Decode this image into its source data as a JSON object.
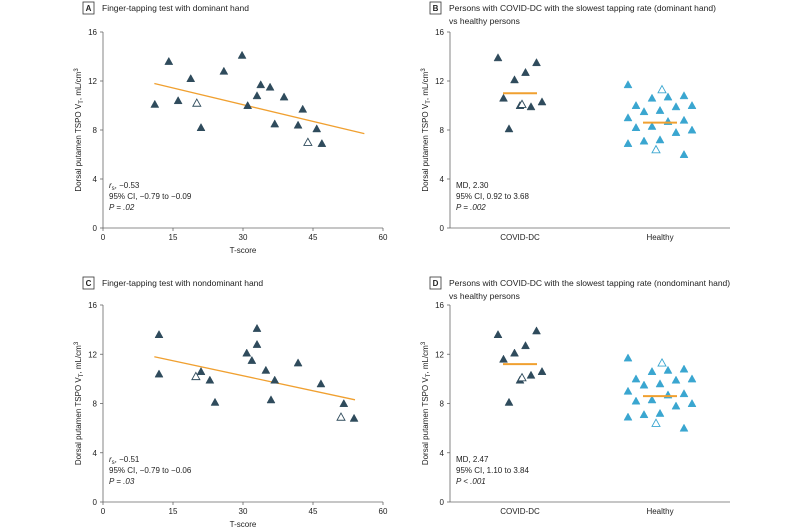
{
  "chart_data": [
    {
      "type": "scatter",
      "panel_label": "A",
      "title": [
        "Finger-tapping test with dominant hand"
      ],
      "x_label": "T-score",
      "y_label": [
        "Dorsal putamen TSPO V",
        "T",
        ", mL/cm",
        "3"
      ],
      "xlim": [
        0,
        60
      ],
      "xticks": [
        0,
        15,
        30,
        45,
        60
      ],
      "ylim": [
        0,
        16
      ],
      "yticks": [
        0,
        4,
        8,
        12,
        16
      ],
      "series": [
        {
          "color": "#2f4b5c",
          "filled": true,
          "x": [
            11.1,
            14.1,
            16.1,
            18.8,
            21,
            25.9,
            29.8,
            31,
            33,
            33.8,
            35.8,
            36.8,
            38.8,
            41.8,
            42.8,
            45.8,
            46.9
          ],
          "values": [
            10.1,
            13.6,
            10.4,
            12.2,
            8.2,
            12.8,
            14.1,
            10.0,
            10.8,
            11.7,
            11.5,
            8.5,
            10.7,
            8.4,
            9.7,
            8.1,
            6.9
          ]
        },
        {
          "color": "#2f4b5c",
          "filled": false,
          "x": [
            20.1,
            43.9
          ],
          "values": [
            10.2,
            7.0
          ]
        }
      ],
      "trend": {
        "color": "#f0a030",
        "x": [
          11,
          56
        ],
        "values": [
          11.8,
          7.7
        ]
      },
      "annotations": [
        [
          "r",
          "s",
          ", −0.53"
        ],
        [
          "95% CI, −0.79 to −0.09"
        ],
        [
          "P = .02"
        ]
      ]
    },
    {
      "type": "strip",
      "panel_label": "B",
      "title": [
        "Persons with COVID-DC with the slowest tapping rate (dominant hand)",
        "vs healthy persons"
      ],
      "y_label": [
        "Dorsal putamen TSPO V",
        "T",
        ", mL/cm",
        "3"
      ],
      "ylim": [
        0,
        16
      ],
      "yticks": [
        0,
        4,
        8,
        12,
        16
      ],
      "categories": [
        "COVID-DC",
        "Healthy"
      ],
      "groups": [
        {
          "color": "#2f4b5c",
          "values": [
            13.9,
            13.5,
            12.7,
            12.1,
            10.6,
            10.3,
            9.9,
            10.0,
            8.1
          ],
          "open_values": [
            10.1
          ],
          "center": 11.0
        },
        {
          "color": "#3aa6d0",
          "values": [
            11.7,
            10.8,
            10.7,
            10.6,
            10.0,
            10.0,
            9.9,
            9.6,
            9.5,
            9.0,
            8.8,
            8.7,
            8.3,
            8.2,
            8.0,
            7.8,
            7.2,
            7.1,
            6.9,
            6.0
          ],
          "open_values": [
            11.3,
            6.4
          ],
          "center": 8.6
        }
      ],
      "center_color": "#f0a030",
      "annotations": [
        [
          "MD, 2.30"
        ],
        [
          "95% CI, 0.92 to 3.68"
        ],
        [
          "P = .002"
        ]
      ]
    },
    {
      "type": "scatter",
      "panel_label": "C",
      "title": [
        "Finger-tapping test with nondominant hand"
      ],
      "x_label": "T-score",
      "y_label": [
        "Dorsal putamen TSPO V",
        "T",
        ", mL/cm",
        "3"
      ],
      "xlim": [
        0,
        60
      ],
      "xticks": [
        0,
        15,
        30,
        45,
        60
      ],
      "ylim": [
        0,
        16
      ],
      "yticks": [
        0,
        4,
        8,
        12,
        16
      ],
      "series": [
        {
          "color": "#2f4b5c",
          "filled": true,
          "x": [
            12,
            12,
            21,
            22.9,
            24,
            30.8,
            31.9,
            33,
            33,
            34.9,
            36,
            36.8,
            41.8,
            46.7,
            51.6,
            53.8
          ],
          "values": [
            13.6,
            10.4,
            10.6,
            9.9,
            8.1,
            12.1,
            11.5,
            14.1,
            12.8,
            10.7,
            8.3,
            9.9,
            11.3,
            9.6,
            8.0,
            6.8
          ]
        },
        {
          "color": "#2f4b5c",
          "filled": false,
          "x": [
            19.9,
            51
          ],
          "values": [
            10.2,
            6.9
          ]
        }
      ],
      "trend": {
        "color": "#f0a030",
        "x": [
          11,
          54
        ],
        "values": [
          11.8,
          8.3
        ]
      },
      "annotations": [
        [
          "r",
          "s",
          ", −0.51"
        ],
        [
          "95% CI, −0.79 to −0.06"
        ],
        [
          "P = .03"
        ]
      ]
    },
    {
      "type": "strip",
      "panel_label": "D",
      "title": [
        "Persons with COVID-DC with the slowest tapping rate (nondominant hand)",
        "vs healthy persons"
      ],
      "y_label": [
        "Dorsal putamen TSPO V",
        "T",
        ", mL/cm",
        "3"
      ],
      "ylim": [
        0,
        16
      ],
      "yticks": [
        0,
        4,
        8,
        12,
        16
      ],
      "categories": [
        "COVID-DC",
        "Healthy"
      ],
      "groups": [
        {
          "color": "#2f4b5c",
          "values": [
            13.6,
            13.9,
            12.7,
            12.1,
            11.6,
            10.6,
            10.3,
            9.9,
            8.1
          ],
          "open_values": [
            10.1
          ],
          "center": 11.2
        },
        {
          "color": "#3aa6d0",
          "values": [
            11.7,
            10.8,
            10.7,
            10.6,
            10.0,
            10.0,
            9.9,
            9.6,
            9.5,
            9.0,
            8.8,
            8.7,
            8.3,
            8.2,
            8.0,
            7.8,
            7.2,
            7.1,
            6.9,
            6.0
          ],
          "open_values": [
            11.3,
            6.4
          ],
          "center": 8.6
        }
      ],
      "center_color": "#f0a030",
      "annotations": [
        [
          "MD, 2.47"
        ],
        [
          "95% CI, 1.10 to 3.84"
        ],
        [
          "P < .001"
        ]
      ]
    }
  ]
}
